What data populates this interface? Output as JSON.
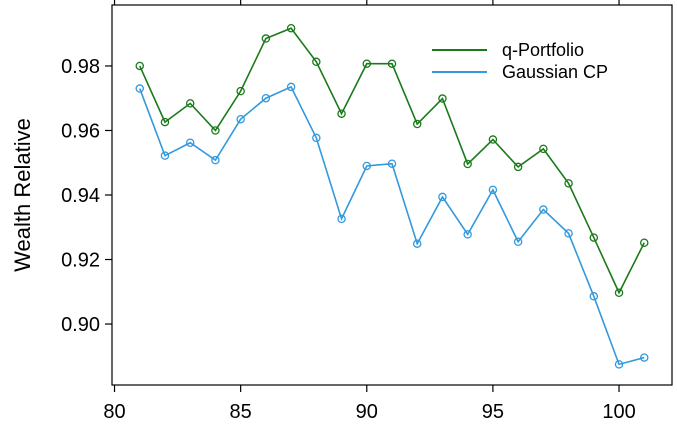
{
  "chart_data": {
    "type": "line",
    "title": "",
    "xlabel": "",
    "ylabel": "Wealth Relative",
    "xlim": [
      79.9,
      102.1
    ],
    "ylim": [
      0.8811,
      0.9989
    ],
    "xticks": [
      80,
      85,
      90,
      95,
      100
    ],
    "yticks": [
      0.9,
      0.92,
      0.94,
      0.96,
      0.98
    ],
    "ytick_labels": [
      "0.90",
      "0.92",
      "0.94",
      "0.96",
      "0.98"
    ],
    "grid": false,
    "legend_position": "top-right",
    "x": [
      81,
      82,
      83,
      84,
      85,
      86,
      87,
      88,
      89,
      90,
      91,
      92,
      93,
      94,
      95,
      96,
      97,
      98,
      99,
      100,
      101
    ],
    "series": [
      {
        "name": "q-Portfolio",
        "color": "#1a7a1a",
        "values": [
          0.98,
          0.9626,
          0.9684,
          0.96,
          0.9722,
          0.9885,
          0.9917,
          0.9813,
          0.9652,
          0.9807,
          0.9807,
          0.962,
          0.9699,
          0.9496,
          0.9572,
          0.9487,
          0.9543,
          0.9436,
          0.9268,
          0.9097,
          0.9252
        ]
      },
      {
        "name": "Gaussian CP",
        "color": "#3399dd",
        "values": [
          0.973,
          0.9522,
          0.9562,
          0.9508,
          0.9635,
          0.97,
          0.9735,
          0.9577,
          0.9326,
          0.949,
          0.9497,
          0.9249,
          0.9394,
          0.9278,
          0.9416,
          0.9255,
          0.9355,
          0.9281,
          0.9086,
          0.8875,
          0.8896
        ]
      }
    ]
  }
}
